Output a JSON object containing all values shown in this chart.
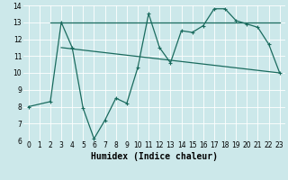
{
  "xlabel": "Humidex (Indice chaleur)",
  "bg_color": "#cce8ea",
  "line_color": "#1a6b5e",
  "grid_color": "#ffffff",
  "xlim": [
    -0.5,
    23.5
  ],
  "ylim": [
    6,
    14
  ],
  "xticks": [
    0,
    1,
    2,
    3,
    4,
    5,
    6,
    7,
    8,
    9,
    10,
    11,
    12,
    13,
    14,
    15,
    16,
    17,
    18,
    19,
    20,
    21,
    22,
    23
  ],
  "yticks": [
    6,
    7,
    8,
    9,
    10,
    11,
    12,
    13,
    14
  ],
  "zigzag_x": [
    0,
    2,
    3,
    4,
    5,
    6,
    7,
    8,
    9,
    10,
    11,
    12,
    13,
    14,
    15,
    16,
    17,
    18,
    19,
    20,
    21,
    22,
    23
  ],
  "zigzag_y": [
    8,
    8.3,
    13,
    11.5,
    7.9,
    6.1,
    7.2,
    8.5,
    8.2,
    10.3,
    13.5,
    11.5,
    10.6,
    12.5,
    12.4,
    12.8,
    13.8,
    13.8,
    13.1,
    12.9,
    12.7,
    11.7,
    10
  ],
  "trend1_x": [
    2,
    23
  ],
  "trend1_y": [
    13.0,
    13.0
  ],
  "trend2_x": [
    3,
    23
  ],
  "trend2_y": [
    11.5,
    10.0
  ],
  "xlabel_fontsize": 7,
  "tick_fontsize": 5.5
}
